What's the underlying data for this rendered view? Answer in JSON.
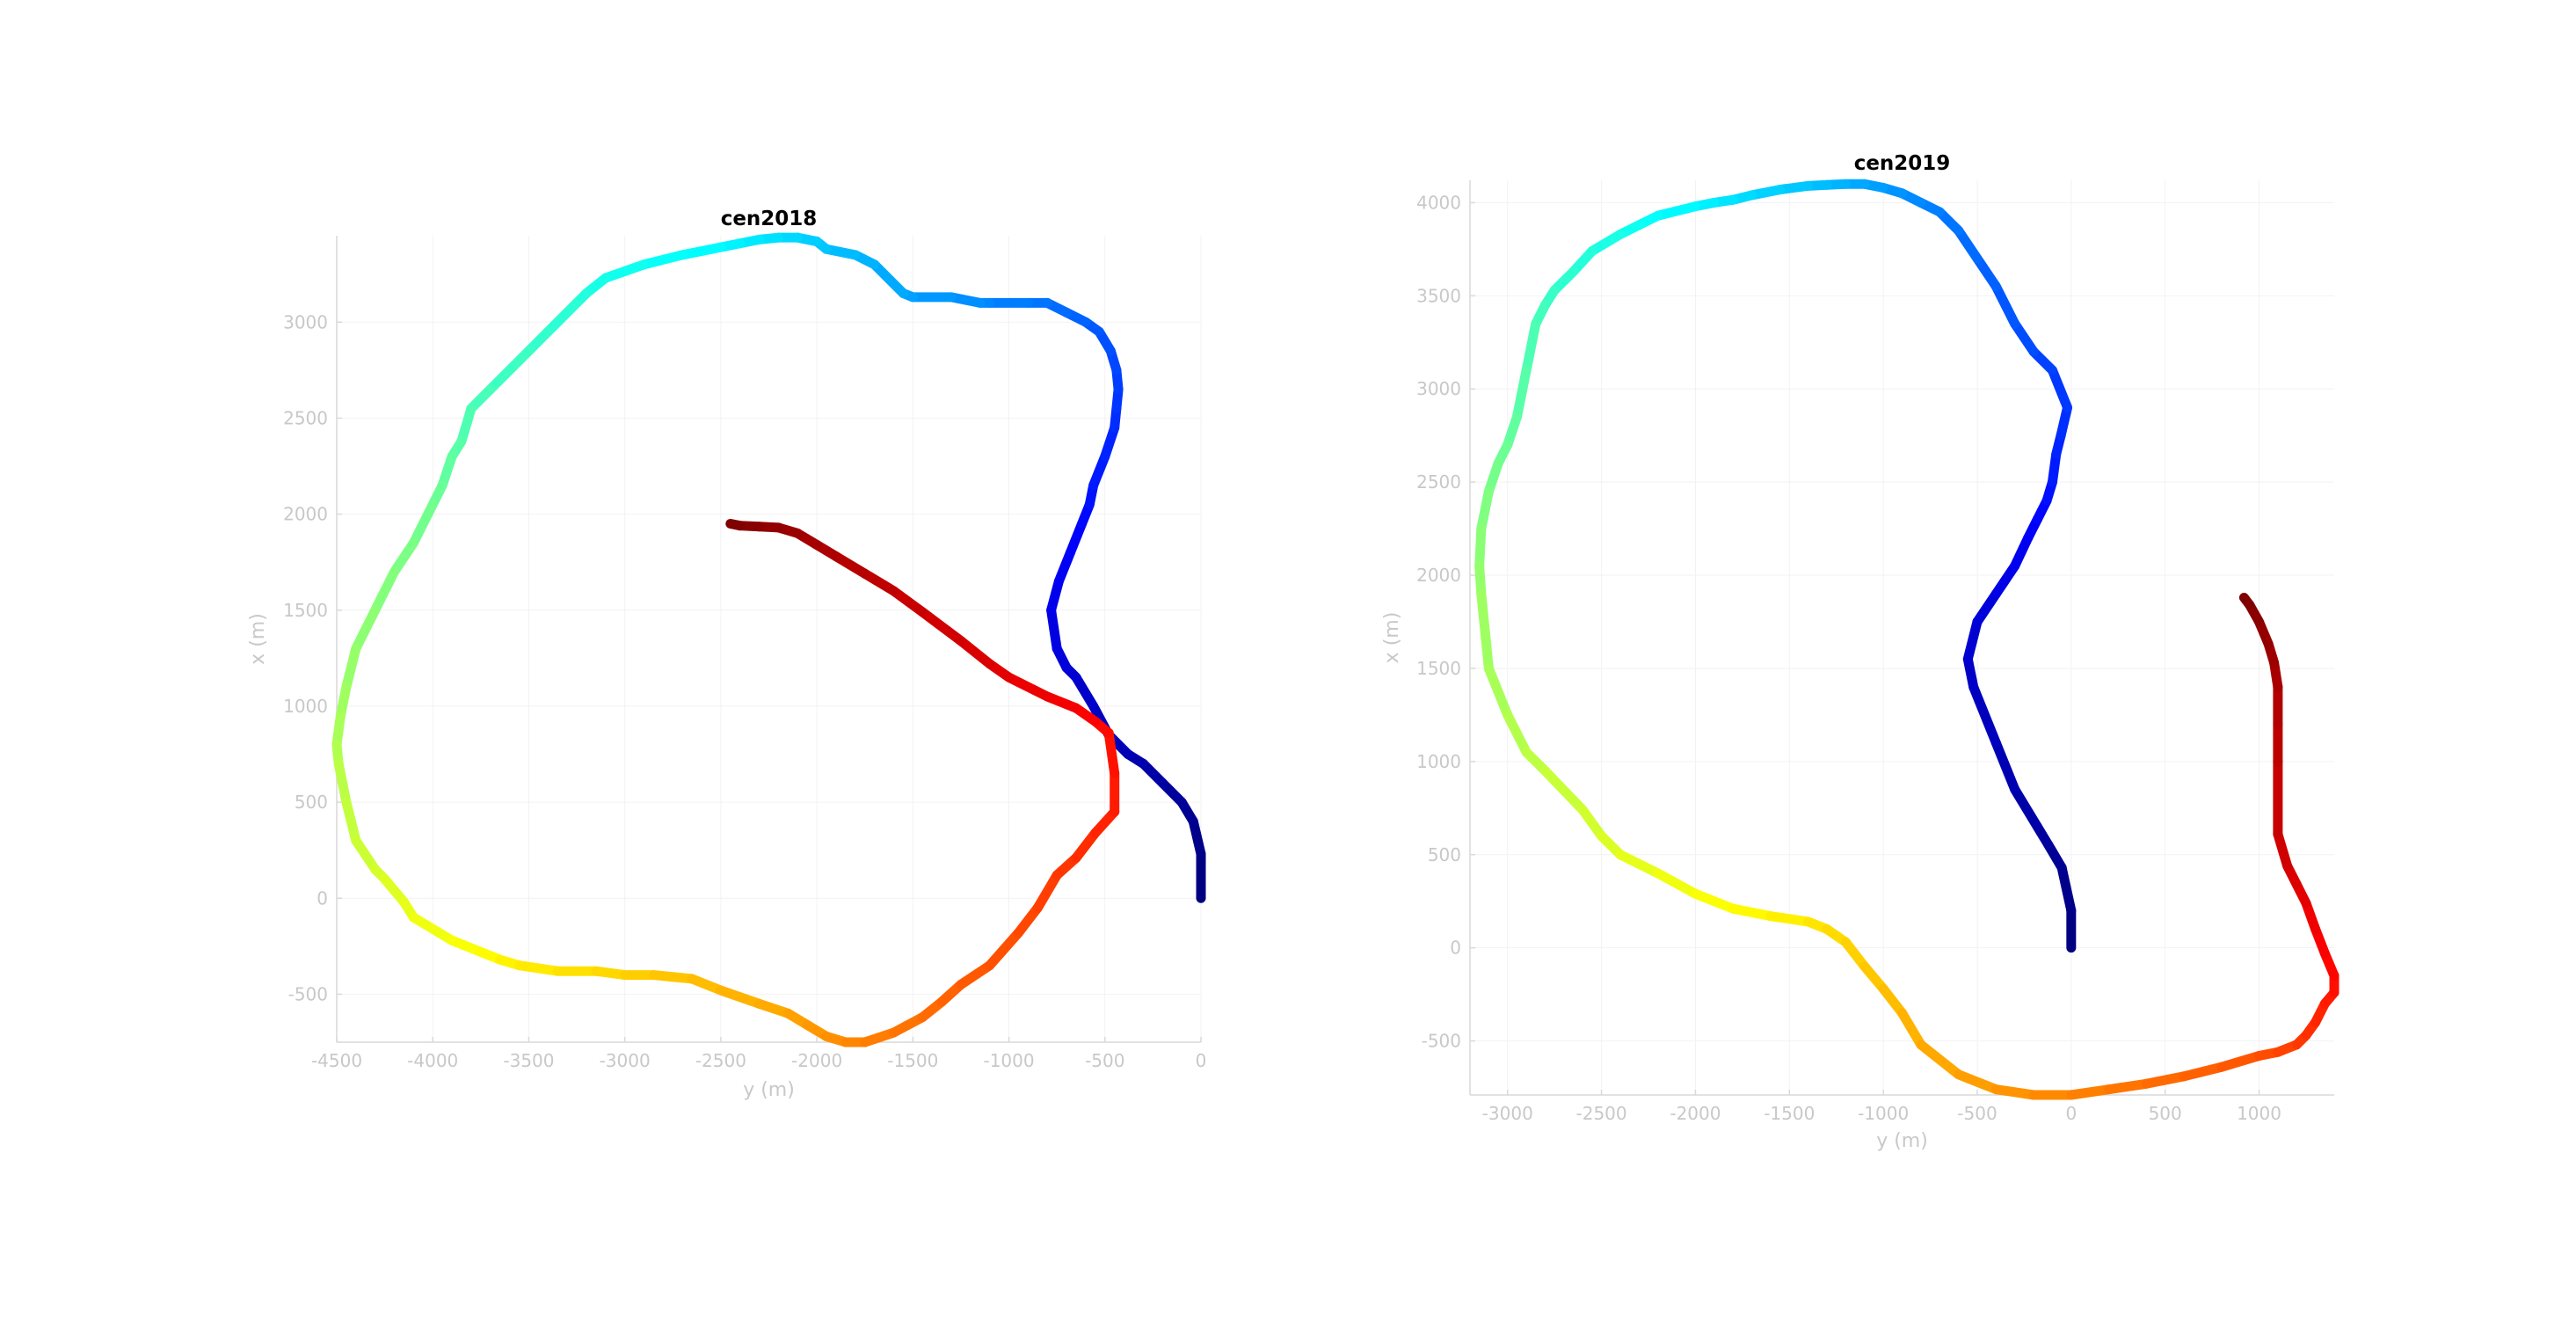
{
  "chart_data": [
    {
      "type": "line",
      "title": "cen2018",
      "xlabel": "y (m)",
      "ylabel": "x (m)",
      "xlim": [
        -4500,
        0
      ],
      "ylim": [
        -750,
        3450
      ],
      "xticks": [
        -4500,
        -4000,
        -3500,
        -3000,
        -2500,
        -2000,
        -1500,
        -1000,
        -500,
        0
      ],
      "yticks": [
        -500,
        0,
        500,
        1000,
        1500,
        2000,
        2500,
        3000
      ],
      "grid": true,
      "colormap": "jet",
      "series": [
        {
          "x": [
            0,
            0,
            -40,
            -100,
            -200,
            -300,
            -380,
            -480,
            -560,
            -650,
            -700,
            -750,
            -780,
            -740,
            -680,
            -620,
            -580,
            -560,
            -500,
            -450,
            -440,
            -430,
            -440,
            -470,
            -530,
            -600,
            -700,
            -800,
            -900,
            -1100,
            -1150,
            -1300,
            -1500,
            -1550,
            -1700,
            -1800,
            -1950,
            -2000,
            -2100,
            -2200,
            -2300,
            -2400,
            -2500,
            -2700,
            -2900,
            -3100,
            -3200,
            -3250,
            -3400,
            -3500,
            -3700,
            -3800,
            -3850,
            -3900,
            -3950,
            -4000,
            -4100,
            -4200,
            -4300,
            -4400,
            -4450,
            -4480,
            -4500,
            -4490,
            -4450,
            -4400,
            -4300,
            -4250,
            -4150,
            -4100,
            -3900,
            -3750,
            -3650,
            -3550,
            -3350,
            -3150,
            -3000,
            -2850,
            -2650,
            -2500,
            -2300,
            -2150,
            -2050,
            -1950,
            -1850,
            -1750,
            -1600,
            -1450,
            -1350,
            -1250,
            -1100,
            -950,
            -850,
            -750,
            -650,
            -550,
            -450,
            -450,
            -480,
            -550,
            -650,
            -800,
            -1000,
            -1100,
            -1250,
            -1450,
            -1600,
            -1750,
            -1900,
            -2000,
            -2100,
            -2200,
            -2300,
            -2400,
            -2450
          ],
          "y": [
            0,
            230,
            400,
            500,
            600,
            700,
            750,
            850,
            1000,
            1150,
            1200,
            1300,
            1500,
            1650,
            1800,
            1950,
            2050,
            2150,
            2300,
            2450,
            2550,
            2650,
            2750,
            2850,
            2950,
            3000,
            3050,
            3100,
            3100,
            3100,
            3100,
            3130,
            3130,
            3150,
            3300,
            3350,
            3380,
            3420,
            3440,
            3440,
            3430,
            3410,
            3390,
            3350,
            3300,
            3230,
            3150,
            3100,
            2950,
            2850,
            2650,
            2550,
            2380,
            2300,
            2150,
            2050,
            1850,
            1700,
            1500,
            1300,
            1100,
            950,
            800,
            700,
            500,
            300,
            150,
            100,
            -20,
            -100,
            -220,
            -280,
            -320,
            -350,
            -380,
            -380,
            -400,
            -400,
            -420,
            -480,
            -550,
            -600,
            -660,
            -720,
            -750,
            -750,
            -700,
            -620,
            -540,
            -450,
            -350,
            -180,
            -50,
            120,
            210,
            340,
            450,
            650,
            860,
            920,
            990,
            1050,
            1150,
            1220,
            1340,
            1490,
            1600,
            1690,
            1780,
            1840,
            1900,
            1930,
            1935,
            1940,
            1950
          ]
        }
      ]
    },
    {
      "type": "line",
      "title": "cen2019",
      "xlabel": "y (m)",
      "ylabel": "x (m)",
      "xlim": [
        -3200,
        1400
      ],
      "ylim": [
        -790,
        4120
      ],
      "xticks": [
        -3000,
        -2500,
        -2000,
        -1500,
        -1000,
        -500,
        0,
        500,
        1000
      ],
      "yticks": [
        -500,
        0,
        500,
        1000,
        1500,
        2000,
        2500,
        3000,
        3500,
        4000
      ],
      "grid": true,
      "colormap": "jet",
      "series": [
        {
          "x": [
            0,
            0,
            -50,
            -120,
            -180,
            -300,
            -400,
            -520,
            -550,
            -500,
            -400,
            -300,
            -230,
            -180,
            -130,
            -100,
            -80,
            -55,
            -20,
            -100,
            -200,
            -300,
            -400,
            -500,
            -600,
            -700,
            -800,
            -900,
            -1000,
            -1100,
            -1200,
            -1300,
            -1400,
            -1550,
            -1700,
            -1800,
            -1900,
            -2000,
            -2200,
            -2300,
            -2400,
            -2550,
            -2650,
            -2750,
            -2800,
            -2850,
            -2900,
            -2950,
            -3000,
            -3050,
            -3100,
            -3140,
            -3150,
            -3140,
            -3100,
            -3000,
            -2900,
            -2800,
            -2600,
            -2500,
            -2400,
            -2200,
            -2000,
            -1800,
            -1600,
            -1400,
            -1300,
            -1200,
            -1100,
            -1000,
            -900,
            -800,
            -600,
            -400,
            -200,
            0,
            200,
            400,
            600,
            800,
            1000,
            1100,
            1200,
            1250,
            1300,
            1350,
            1400,
            1400,
            1350,
            1300,
            1250,
            1200,
            1150,
            1100,
            1100,
            1100,
            1100,
            1080,
            1050,
            1000,
            950,
            920
          ],
          "y": [
            0,
            200,
            430,
            550,
            650,
            850,
            1100,
            1400,
            1550,
            1750,
            1900,
            2050,
            2200,
            2300,
            2400,
            2500,
            2650,
            2750,
            2900,
            3100,
            3200,
            3350,
            3550,
            3700,
            3850,
            3950,
            4000,
            4050,
            4080,
            4100,
            4100,
            4095,
            4090,
            4070,
            4040,
            4015,
            4000,
            3980,
            3930,
            3880,
            3830,
            3740,
            3630,
            3530,
            3450,
            3350,
            3100,
            2850,
            2700,
            2600,
            2450,
            2250,
            2050,
            1900,
            1500,
            1250,
            1050,
            950,
            740,
            600,
            500,
            400,
            290,
            210,
            170,
            140,
            100,
            30,
            -100,
            -220,
            -350,
            -520,
            -680,
            -760,
            -790,
            -790,
            -760,
            -730,
            -690,
            -640,
            -580,
            -560,
            -520,
            -470,
            -400,
            -300,
            -240,
            -150,
            -30,
            100,
            240,
            340,
            440,
            610,
            1000,
            1200,
            1400,
            1530,
            1630,
            1750,
            1840,
            1880
          ]
        }
      ]
    }
  ]
}
